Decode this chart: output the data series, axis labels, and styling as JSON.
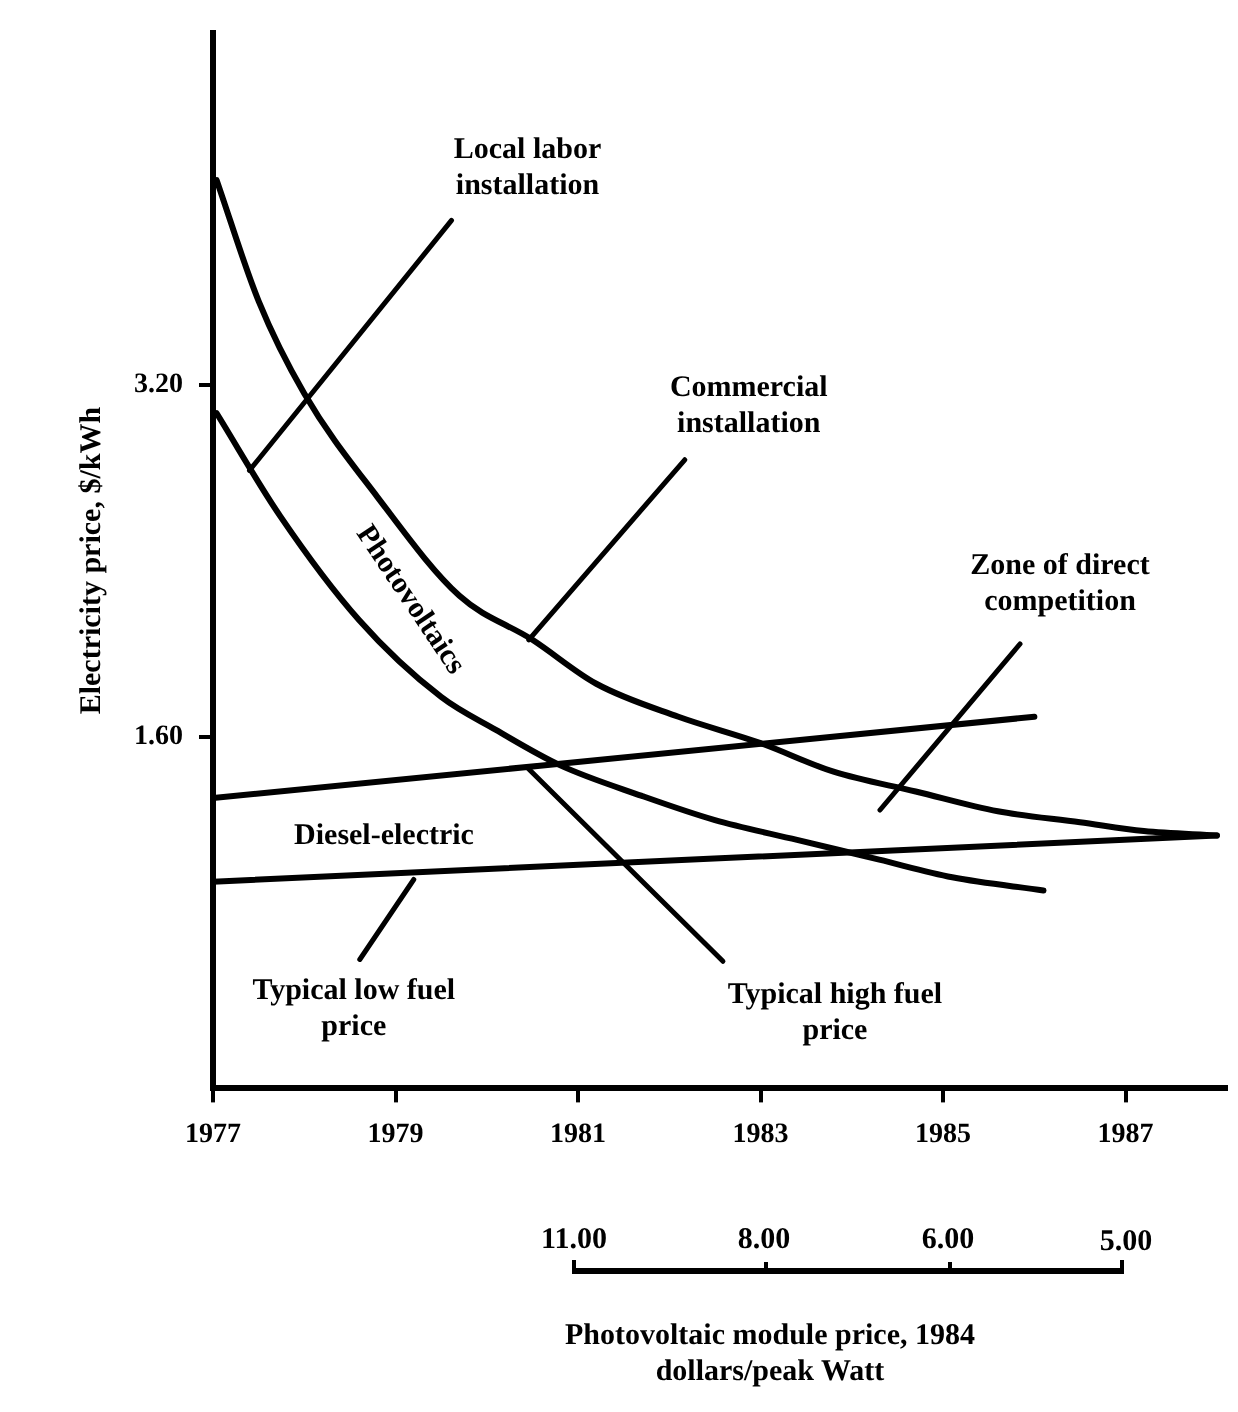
{
  "chart_data": {
    "type": "line",
    "ylabel": "Electricity price, $/kWh",
    "xlim": [
      1977,
      1988.1
    ],
    "xticks": [
      1977,
      1979,
      1981,
      1983,
      1985,
      1987
    ],
    "ylim": [
      0,
      4.8
    ],
    "yticks": [
      {
        "value": 1.6,
        "label": "1.60"
      },
      {
        "value": 3.2,
        "label": "3.20"
      }
    ],
    "series": [
      {
        "color": "#000000",
        "x": [
          1977.04,
          1977.5,
          1978.0,
          1978.8,
          1979.7,
          1980.5,
          1981.2,
          1982.1,
          1983.0,
          1983.8,
          1984.7,
          1985.6,
          1986.5,
          1987.2,
          1988.0
        ],
        "values": [
          4.13,
          3.58,
          3.16,
          2.69,
          2.24,
          2.04,
          1.84,
          1.69,
          1.57,
          1.44,
          1.35,
          1.26,
          1.21,
          1.17,
          1.15
        ]
      },
      {
        "color": "#000000",
        "x": [
          1977.04,
          1977.74,
          1978.6,
          1979.5,
          1980.1,
          1980.8,
          1981.7,
          1982.5,
          1983.4,
          1984.3,
          1985.1,
          1986.1
        ],
        "values": [
          3.07,
          2.6,
          2.13,
          1.78,
          1.63,
          1.47,
          1.33,
          1.22,
          1.13,
          1.04,
          0.96,
          0.9
        ]
      },
      {
        "color": "#000000",
        "x": [
          1977,
          1986.0
        ],
        "values": [
          1.32,
          1.69
        ]
      },
      {
        "color": "#000000",
        "x": [
          1977,
          1988.0
        ],
        "values": [
          0.94,
          1.15
        ]
      }
    ],
    "annotations": [
      {
        "text": "Local labor installation",
        "x": 1977.4,
        "y": 2.81
      },
      {
        "text": "Commercial installation",
        "x": 1980.46,
        "y": 2.04
      },
      "Photovoltaics",
      "Zone of direct competition",
      "Diesel-electric",
      {
        "text": "Typical low fuel price",
        "x": 1979.2,
        "y": 0.95
      },
      {
        "text": "Typical high fuel price",
        "x": 1980.44,
        "y": 1.46
      },
      "11.00",
      "8.00",
      "6.00",
      "5.00",
      "Photovoltaic module price, 1984 dollars/peak Watt"
    ],
    "grid": false,
    "legend": false,
    "marker": "none",
    "line_style": "solid"
  }
}
